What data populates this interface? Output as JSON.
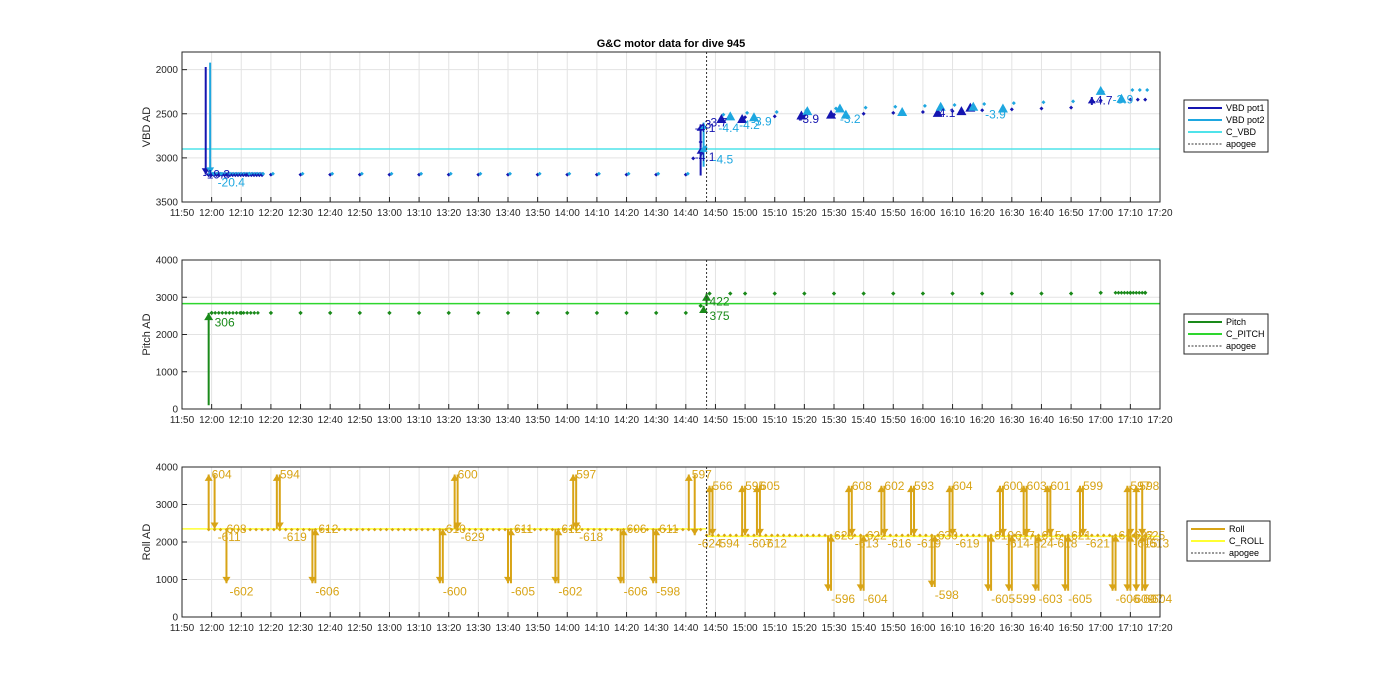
{
  "chart_data": [
    {
      "type": "scatter",
      "title": "G&C motor data for dive 945",
      "ylabel": "VBD AD",
      "ylim": [
        1800,
        3500
      ],
      "y_reversed": true,
      "yticks": [
        "2000",
        "2500",
        "3000",
        "3500"
      ],
      "xlim": [
        "11:50",
        "17:20"
      ],
      "xticks": [
        "11:50",
        "12:00",
        "12:10",
        "12:20",
        "12:30",
        "12:40",
        "12:50",
        "13:00",
        "13:10",
        "13:20",
        "13:30",
        "13:40",
        "13:50",
        "14:00",
        "14:10",
        "14:20",
        "14:30",
        "14:40",
        "14:50",
        "15:00",
        "15:10",
        "15:20",
        "15:30",
        "15:40",
        "15:50",
        "16:00",
        "16:10",
        "16:20",
        "16:30",
        "16:40",
        "16:50",
        "17:00",
        "17:10",
        "17:20"
      ],
      "grid": true,
      "legend_position": "right",
      "legend": [
        "VBD pot1",
        "VBD pot2",
        "C_VBD",
        "apogee"
      ],
      "colors": {
        "pot1": "#1515b0",
        "pot2": "#1ea7e0",
        "c_vbd": "#4fe3ea",
        "apogee": "#333333"
      },
      "apogee": "14:47",
      "c_vbd": 2900,
      "series": [
        {
          "name": "VBD pot1",
          "x": [
            "12:00",
            "12:05",
            "12:12",
            "12:20",
            "12:30",
            "12:40",
            "12:50",
            "13:00",
            "13:10",
            "13:20",
            "13:30",
            "13:40",
            "13:50",
            "14:00",
            "14:10",
            "14:20",
            "14:30",
            "14:40",
            "14:45",
            "14:52",
            "15:00",
            "15:10",
            "15:20",
            "15:30",
            "15:40",
            "15:50",
            "16:00",
            "16:10",
            "16:20",
            "16:30",
            "16:40",
            "16:50",
            "17:00",
            "17:10",
            "17:15"
          ],
          "values": [
            3190,
            3190,
            3190,
            3190,
            3190,
            3190,
            3190,
            3190,
            3190,
            3190,
            3190,
            3190,
            3190,
            3190,
            3190,
            3190,
            3190,
            3190,
            2820,
            2560,
            2540,
            2530,
            2520,
            2510,
            2500,
            2490,
            2480,
            2470,
            2460,
            2450,
            2440,
            2430,
            2350,
            2340,
            2340
          ]
        },
        {
          "name": "VBD pot2",
          "x": [
            "12:00",
            "12:05",
            "12:12",
            "12:20",
            "12:30",
            "12:40",
            "12:50",
            "13:00",
            "13:10",
            "13:20",
            "13:30",
            "13:40",
            "13:50",
            "14:00",
            "14:10",
            "14:20",
            "14:30",
            "14:40",
            "14:46",
            "14:52",
            "15:00",
            "15:10",
            "15:20",
            "15:30",
            "15:40",
            "15:50",
            "16:00",
            "16:10",
            "16:20",
            "16:30",
            "16:40",
            "16:50",
            "17:00",
            "17:10",
            "17:15"
          ],
          "values": [
            3180,
            3180,
            3180,
            3180,
            3180,
            3180,
            3180,
            3180,
            3180,
            3180,
            3180,
            3180,
            3180,
            3180,
            3180,
            3180,
            3180,
            3180,
            2880,
            2510,
            2490,
            2480,
            2460,
            2440,
            2430,
            2420,
            2410,
            2400,
            2390,
            2380,
            2370,
            2360,
            2250,
            2230,
            2230
          ]
        }
      ],
      "annotations": [
        {
          "text": "-19.3",
          "x": "11:57",
          "y": 3190,
          "color": "#1515b0"
        },
        {
          "text": "-20.4",
          "x": "12:02",
          "y": 3280,
          "color": "#1ea7e0"
        },
        {
          "text": "-4.1",
          "x": "14:43",
          "y": 2990,
          "color": "#1515b0"
        },
        {
          "text": "-4.5",
          "x": "14:49",
          "y": 3020,
          "color": "#1ea7e0"
        },
        {
          "text": "-4.1",
          "x": "14:43",
          "y": 2660,
          "color": "#1515b0"
        },
        {
          "text": "-3",
          "x": "14:45",
          "y": 2620,
          "color": "#1515b0"
        },
        {
          "text": "-3.7",
          "x": "14:47",
          "y": 2600,
          "color": "#1515b0"
        },
        {
          "text": "-4.4",
          "x": "14:51",
          "y": 2660,
          "color": "#1ea7e0"
        },
        {
          "text": "-4.2",
          "x": "14:58",
          "y": 2630,
          "color": "#1ea7e0"
        },
        {
          "text": "-3.9",
          "x": "15:02",
          "y": 2590,
          "color": "#1ea7e0"
        },
        {
          "text": "-3.9",
          "x": "15:18",
          "y": 2560,
          "color": "#1515b0"
        },
        {
          "text": "-3.2",
          "x": "15:32",
          "y": 2560,
          "color": "#1ea7e0"
        },
        {
          "text": "-4.1",
          "x": "16:04",
          "y": 2490,
          "color": "#1515b0"
        },
        {
          "text": "-3.9",
          "x": "16:21",
          "y": 2510,
          "color": "#1ea7e0"
        },
        {
          "text": "-4.7",
          "x": "16:57",
          "y": 2350,
          "color": "#1515b0"
        },
        {
          "text": "-3.9",
          "x": "17:04",
          "y": 2340,
          "color": "#1ea7e0"
        }
      ]
    },
    {
      "type": "scatter",
      "ylabel": "Pitch AD",
      "ylim": [
        0,
        4000
      ],
      "yticks": [
        "0",
        "1000",
        "2000",
        "3000",
        "4000"
      ],
      "xlim": [
        "11:50",
        "17:20"
      ],
      "grid": true,
      "legend_position": "right",
      "legend": [
        "Pitch",
        "C_PITCH",
        "apogee"
      ],
      "colors": {
        "pitch": "#1a8a1a",
        "c_pitch": "#2ed62e",
        "apogee": "#333333"
      },
      "apogee": "14:47",
      "c_pitch": 2830,
      "series": [
        {
          "name": "Pitch",
          "x": [
            "12:00",
            "12:10",
            "12:20",
            "12:30",
            "12:40",
            "12:50",
            "13:00",
            "13:10",
            "13:20",
            "13:30",
            "13:40",
            "13:50",
            "14:00",
            "14:10",
            "14:20",
            "14:30",
            "14:40",
            "14:45",
            "14:48",
            "14:55",
            "15:00",
            "15:10",
            "15:20",
            "15:30",
            "15:40",
            "15:50",
            "16:00",
            "16:10",
            "16:20",
            "16:30",
            "16:40",
            "16:50",
            "17:00",
            "17:10",
            "17:15"
          ],
          "values": [
            2580,
            2580,
            2580,
            2580,
            2580,
            2580,
            2580,
            2580,
            2580,
            2580,
            2580,
            2580,
            2580,
            2580,
            2580,
            2580,
            2580,
            2770,
            3100,
            3100,
            3100,
            3100,
            3100,
            3100,
            3100,
            3100,
            3100,
            3100,
            3100,
            3100,
            3100,
            3100,
            3120,
            3120,
            3120
          ]
        }
      ],
      "annotations": [
        {
          "text": "306",
          "x": "12:01",
          "y": 2320,
          "color": "#1a8a1a"
        },
        {
          "text": "422",
          "x": "14:48",
          "y": 2880,
          "color": "#1a8a1a"
        },
        {
          "text": "375",
          "x": "14:48",
          "y": 2500,
          "color": "#1a8a1a"
        }
      ]
    },
    {
      "type": "scatter",
      "ylabel": "Roll AD",
      "ylim": [
        0,
        4000
      ],
      "yticks": [
        "0",
        "1000",
        "2000",
        "3000",
        "4000"
      ],
      "xlim": [
        "11:50",
        "17:20"
      ],
      "grid": true,
      "legend_position": "right",
      "legend": [
        "Roll",
        "C_ROLL",
        "apogee"
      ],
      "colors": {
        "roll": "#d8a416",
        "c_roll": "#ffff33",
        "apogee": "#333333"
      },
      "apogee": "14:47",
      "c_roll_before": 2350,
      "c_roll_after": 2150,
      "roll_level_before": 2330,
      "roll_level_after": 2180,
      "moves": [
        {
          "t": "11:59",
          "from": 2350,
          "to": 3800,
          "label": "604"
        },
        {
          "t": "12:01",
          "from": 3800,
          "to": 2350,
          "label": "-611"
        },
        {
          "t": "12:04",
          "from": 2350,
          "to": 2350,
          "label": "608"
        },
        {
          "t": "12:05",
          "from": 2350,
          "to": 900,
          "label": "-602"
        },
        {
          "t": "12:22",
          "from": 2350,
          "to": 3800,
          "label": "594"
        },
        {
          "t": "12:23",
          "from": 3800,
          "to": 2350,
          "label": "-619"
        },
        {
          "t": "12:34",
          "from": 2350,
          "to": 900,
          "label": "-606"
        },
        {
          "t": "12:35",
          "from": 900,
          "to": 2350,
          "label": "612"
        },
        {
          "t": "13:17",
          "from": 2350,
          "to": 900,
          "label": "-600"
        },
        {
          "t": "13:18",
          "from": 900,
          "to": 2350,
          "label": "610"
        },
        {
          "t": "13:22",
          "from": 2350,
          "to": 3800,
          "label": "600"
        },
        {
          "t": "13:23",
          "from": 3800,
          "to": 2350,
          "label": "-629"
        },
        {
          "t": "13:40",
          "from": 2350,
          "to": 900,
          "label": "-605"
        },
        {
          "t": "13:41",
          "from": 900,
          "to": 2350,
          "label": "611"
        },
        {
          "t": "13:56",
          "from": 2350,
          "to": 900,
          "label": "-602"
        },
        {
          "t": "13:57",
          "from": 900,
          "to": 2350,
          "label": "612"
        },
        {
          "t": "14:02",
          "from": 2350,
          "to": 3800,
          "label": "597"
        },
        {
          "t": "14:03",
          "from": 3800,
          "to": 2350,
          "label": "-618"
        },
        {
          "t": "14:18",
          "from": 2350,
          "to": 900,
          "label": "-606"
        },
        {
          "t": "14:19",
          "from": 900,
          "to": 2350,
          "label": "606"
        },
        {
          "t": "14:29",
          "from": 2350,
          "to": 900,
          "label": "-598"
        },
        {
          "t": "14:30",
          "from": 900,
          "to": 2350,
          "label": "611"
        },
        {
          "t": "14:41",
          "from": 2350,
          "to": 3800,
          "label": "597"
        },
        {
          "t": "14:43",
          "from": 3800,
          "to": 2180,
          "label": "-624"
        },
        {
          "t": "14:48",
          "from": 2180,
          "to": 3500,
          "label": "566"
        },
        {
          "t": "14:49",
          "from": 3500,
          "to": 2180,
          "label": "-594"
        },
        {
          "t": "14:59",
          "from": 2180,
          "to": 3500,
          "label": "595"
        },
        {
          "t": "15:00",
          "from": 3500,
          "to": 2180,
          "label": "-607"
        },
        {
          "t": "15:04",
          "from": 2180,
          "to": 3500,
          "label": "605"
        },
        {
          "t": "15:05",
          "from": 3500,
          "to": 2180,
          "label": "-612"
        },
        {
          "t": "15:28",
          "from": 2180,
          "to": 700,
          "label": "-596"
        },
        {
          "t": "15:29",
          "from": 700,
          "to": 2180,
          "label": "623"
        },
        {
          "t": "15:35",
          "from": 2180,
          "to": 3500,
          "label": "608"
        },
        {
          "t": "15:36",
          "from": 3500,
          "to": 2180,
          "label": "-613"
        },
        {
          "t": "15:39",
          "from": 2180,
          "to": 700,
          "label": "-604"
        },
        {
          "t": "15:40",
          "from": 700,
          "to": 2180,
          "label": "622"
        },
        {
          "t": "15:46",
          "from": 2180,
          "to": 3500,
          "label": "602"
        },
        {
          "t": "15:47",
          "from": 3500,
          "to": 2180,
          "label": "-616"
        },
        {
          "t": "15:56",
          "from": 2180,
          "to": 3500,
          "label": "593"
        },
        {
          "t": "15:57",
          "from": 3500,
          "to": 2180,
          "label": "-619"
        },
        {
          "t": "16:03",
          "from": 2180,
          "to": 800,
          "label": "-598"
        },
        {
          "t": "16:04",
          "from": 800,
          "to": 2180,
          "label": "630"
        },
        {
          "t": "16:09",
          "from": 2180,
          "to": 3500,
          "label": "604"
        },
        {
          "t": "16:10",
          "from": 3500,
          "to": 2180,
          "label": "-619"
        },
        {
          "t": "16:22",
          "from": 2180,
          "to": 700,
          "label": "-605"
        },
        {
          "t": "16:23",
          "from": 700,
          "to": 2180,
          "label": "610"
        },
        {
          "t": "16:26",
          "from": 2180,
          "to": 3500,
          "label": "600"
        },
        {
          "t": "16:27",
          "from": 3500,
          "to": 2180,
          "label": "-614"
        },
        {
          "t": "16:29",
          "from": 2180,
          "to": 700,
          "label": "-599"
        },
        {
          "t": "16:30",
          "from": 700,
          "to": 2180,
          "label": "617"
        },
        {
          "t": "16:34",
          "from": 2180,
          "to": 3500,
          "label": "603"
        },
        {
          "t": "16:35",
          "from": 3500,
          "to": 2180,
          "label": "-624"
        },
        {
          "t": "16:38",
          "from": 2180,
          "to": 700,
          "label": "-603"
        },
        {
          "t": "16:39",
          "from": 700,
          "to": 2180,
          "label": "615"
        },
        {
          "t": "16:42",
          "from": 2180,
          "to": 3500,
          "label": "601"
        },
        {
          "t": "16:43",
          "from": 3500,
          "to": 2180,
          "label": "-618"
        },
        {
          "t": "16:48",
          "from": 2180,
          "to": 700,
          "label": "-605"
        },
        {
          "t": "16:49",
          "from": 700,
          "to": 2180,
          "label": "621"
        },
        {
          "t": "16:53",
          "from": 2180,
          "to": 3500,
          "label": "599"
        },
        {
          "t": "16:54",
          "from": 3500,
          "to": 2180,
          "label": "-621"
        },
        {
          "t": "17:04",
          "from": 2180,
          "to": 700,
          "label": "-606"
        },
        {
          "t": "17:05",
          "from": 700,
          "to": 2180,
          "label": "614"
        },
        {
          "t": "17:09",
          "from": 2180,
          "to": 3500,
          "label": "597"
        },
        {
          "t": "17:09",
          "from": 2180,
          "to": 700,
          "label": "-609"
        },
        {
          "t": "17:10",
          "from": 3500,
          "to": 2180,
          "label": "-615"
        },
        {
          "t": "17:10",
          "from": 700,
          "to": 2180,
          "label": "622"
        },
        {
          "t": "17:12",
          "from": 2180,
          "to": 3500,
          "label": "598"
        },
        {
          "t": "17:12",
          "from": 2180,
          "to": 700,
          "label": "-607"
        },
        {
          "t": "17:14",
          "from": 3500,
          "to": 2180,
          "label": "-613"
        },
        {
          "t": "17:14",
          "from": 700,
          "to": 2180,
          "label": "625"
        },
        {
          "t": "17:15",
          "from": 2180,
          "to": 700,
          "label": "-604"
        }
      ]
    }
  ]
}
